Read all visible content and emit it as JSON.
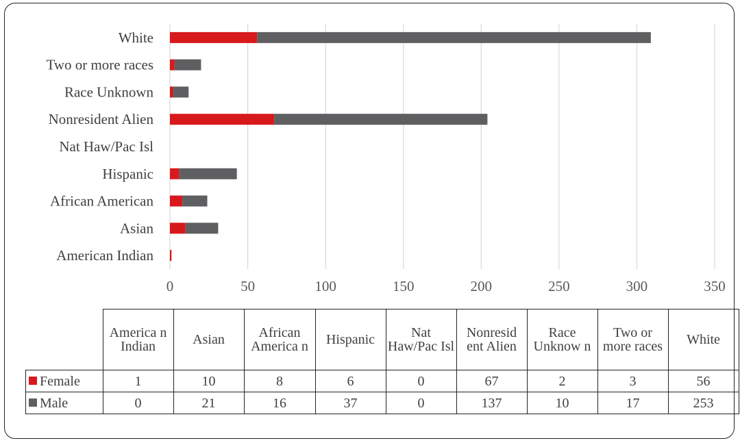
{
  "chart_data": {
    "type": "bar",
    "orientation": "horizontal",
    "stacked": true,
    "categories": [
      "American Indian",
      "Asian",
      "African American",
      "Hispanic",
      "Nat Haw/Pac Isl",
      "Nonresident Alien",
      "Race Unknown",
      "Two or more races",
      "White"
    ],
    "series": [
      {
        "name": "Female",
        "color": "#d7191c",
        "values": [
          1,
          10,
          8,
          6,
          0,
          67,
          2,
          3,
          56
        ]
      },
      {
        "name": "Male",
        "color": "#5f5f61",
        "values": [
          0,
          21,
          16,
          37,
          0,
          137,
          10,
          17,
          253
        ]
      }
    ],
    "xlim": [
      0,
      350
    ],
    "xticks": [
      0,
      50,
      100,
      150,
      200,
      250,
      300,
      350
    ],
    "grid": "vertical",
    "legend": "in data table",
    "table_headers": [
      "America n Indian",
      "Asian",
      "African America n",
      "Hispanic",
      "Nat Haw/Pac Isl",
      "Nonresid ent Alien",
      "Race Unknow n",
      "Two or more races",
      "White"
    ]
  }
}
